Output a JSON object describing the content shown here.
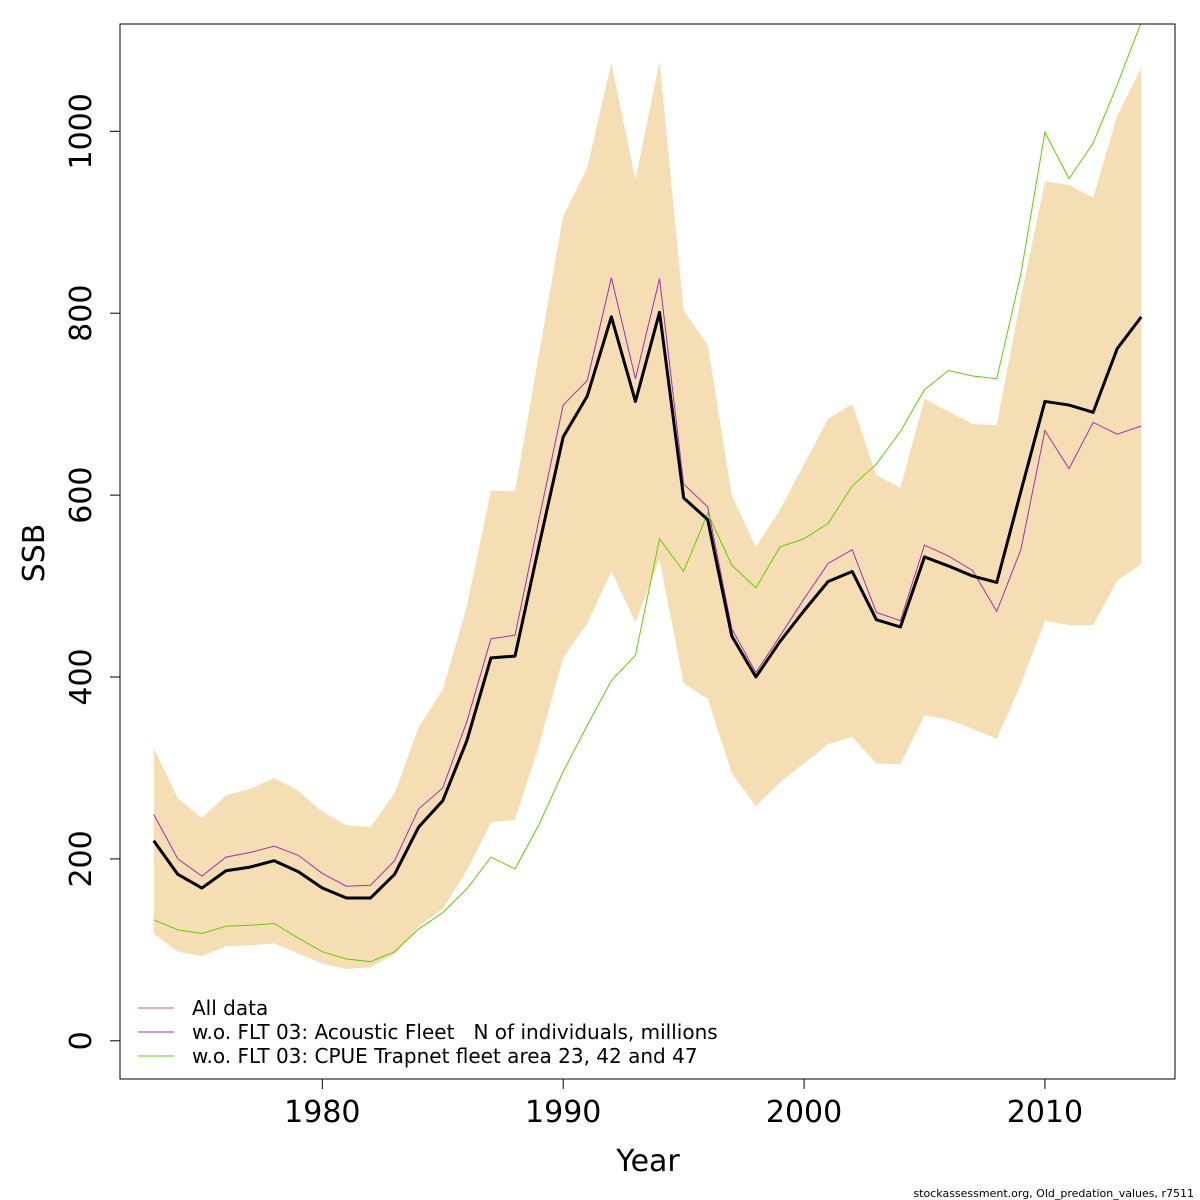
{
  "chart_data": {
    "type": "line",
    "xlabel": "Year",
    "ylabel": "SSB",
    "xlim": [
      1971.6,
      2015.4
    ],
    "ylim": [
      -42,
      1118
    ],
    "x_ticks": [
      1980,
      1990,
      2000,
      2010
    ],
    "y_ticks": [
      0,
      200,
      400,
      600,
      800,
      1000
    ],
    "grid": false,
    "legend_position": "bottom-left",
    "x": [
      1973,
      1974,
      1975,
      1976,
      1977,
      1978,
      1979,
      1980,
      1981,
      1982,
      1983,
      1984,
      1985,
      1986,
      1987,
      1988,
      1989,
      1990,
      1991,
      1992,
      1993,
      1994,
      1995,
      1996,
      1997,
      1998,
      1999,
      2000,
      2001,
      2002,
      2003,
      2004,
      2005,
      2006,
      2007,
      2008,
      2009,
      2010,
      2011,
      2012,
      2013,
      2014
    ],
    "band": {
      "color": "#f5deb3",
      "upper": [
        322,
        267,
        245,
        270,
        277,
        289,
        275,
        252,
        237,
        235,
        272,
        345,
        386,
        478,
        605,
        604,
        756,
        907,
        960,
        1075,
        947,
        1077,
        803,
        765,
        600,
        543,
        584,
        634,
        684,
        700,
        622,
        608,
        706,
        692,
        678,
        677,
        817,
        945,
        941,
        927,
        1017,
        1070
      ],
      "lower": [
        118,
        98,
        93,
        104,
        105,
        107,
        96,
        85,
        79,
        81,
        95,
        126,
        145,
        187,
        240,
        243,
        325,
        421,
        459,
        516,
        460,
        529,
        393,
        376,
        294,
        258,
        284,
        305,
        326,
        334,
        305,
        304,
        358,
        353,
        343,
        332,
        392,
        462,
        457,
        457,
        506,
        524
      ]
    },
    "series": [
      {
        "name": "All data",
        "color": "#e06060",
        "width": 1,
        "values": [
          220,
          183,
          168,
          187,
          191,
          198,
          186,
          168,
          157,
          157,
          183,
          235,
          264,
          330,
          421,
          423,
          545,
          664,
          709,
          796,
          703,
          801,
          597,
          573,
          445,
          400,
          439,
          473,
          505,
          516,
          463,
          455,
          532,
          522,
          511,
          504,
          604,
          703,
          699,
          691,
          761,
          796
        ]
      },
      {
        "name": "w.o. FLT 03: Acoustic Fleet   N of individuals, millions",
        "color": "#a030b0",
        "width": 1,
        "values": [
          249,
          200,
          181,
          202,
          207,
          214,
          204,
          184,
          170,
          171,
          198,
          255,
          278,
          351,
          442,
          446,
          574,
          699,
          726,
          839,
          728,
          838,
          612,
          587,
          453,
          405,
          445,
          486,
          525,
          540,
          471,
          462,
          545,
          533,
          517,
          472,
          540,
          671,
          629,
          680,
          667,
          676
        ]
      },
      {
        "name": "w.o. FLT 03: CPUE Trapnet fleet area 23, 42 and 47",
        "color": "#66cc00",
        "width": 1,
        "values": [
          133,
          122,
          118,
          126,
          127,
          129,
          113,
          98,
          90,
          87,
          98,
          123,
          141,
          167,
          202,
          189,
          238,
          296,
          347,
          396,
          424,
          552,
          516,
          580,
          523,
          498,
          543,
          552,
          569,
          610,
          634,
          670,
          716,
          737,
          731,
          728,
          843,
          999,
          948,
          987,
          1051,
          1120
        ]
      }
    ],
    "main_line": {
      "color": "#000000",
      "width": 3,
      "values": [
        220,
        183,
        168,
        187,
        191,
        198,
        186,
        168,
        157,
        157,
        183,
        235,
        264,
        330,
        421,
        423,
        545,
        664,
        709,
        796,
        703,
        801,
        597,
        573,
        445,
        400,
        439,
        473,
        505,
        516,
        463,
        455,
        532,
        522,
        511,
        504,
        604,
        703,
        699,
        691,
        761,
        796
      ]
    }
  },
  "footer": "stockassessment.org, Old_predation_values, r7511"
}
